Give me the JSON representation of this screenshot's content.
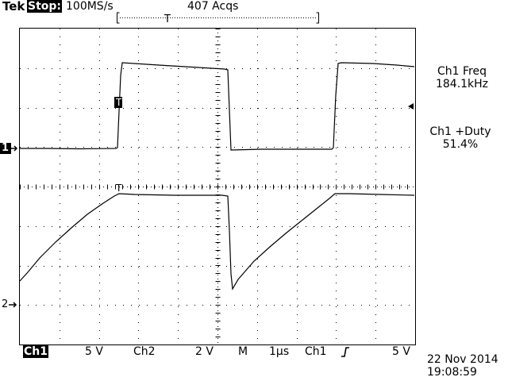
{
  "header": {
    "brand": "Tek",
    "run_state": "Stop:",
    "sample_rate": "100MS/s",
    "acquisitions": "407 Acqs",
    "trigger_position_marker": "T"
  },
  "channels": {
    "ch1_marker": "1",
    "ch2_marker": "2",
    "ch1_trigger_marker": "T",
    "ch2_trigger_marker": "T"
  },
  "measurements": {
    "ch1_freq_label": "Ch1 Freq",
    "ch1_freq_value": "184.1kHz",
    "ch1_duty_label": "Ch1 +Duty",
    "ch1_duty_value": "51.4%"
  },
  "footer": {
    "ch1_label": "Ch1",
    "ch1_scale": "5 V",
    "ch2_label": "Ch2",
    "ch2_scale": "2 V",
    "timebase_label": "M",
    "timebase_scale": "1µs",
    "trigger_source": "Ch1",
    "trigger_slope_icon": "rising-edge-icon",
    "trigger_level": "5 V",
    "date": "22 Nov 2014",
    "time": "19:08:59"
  },
  "colors": {
    "background": "#ffffff",
    "trace": "#000000",
    "grid": "#000000"
  }
}
